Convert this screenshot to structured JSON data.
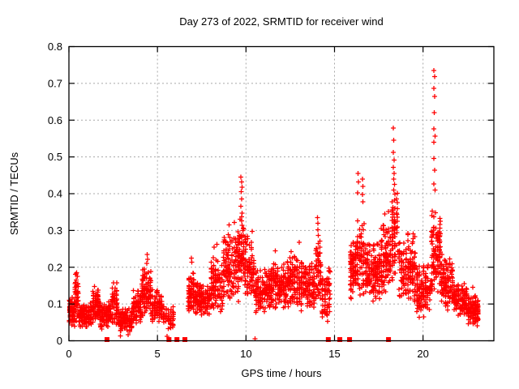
{
  "window": {
    "background": "#ffffff"
  },
  "chart_data": {
    "type": "scatter",
    "title": "Day 273 of 2022, SRMTID for receiver wind",
    "xlabel": "GPS time / hours",
    "ylabel": "SRMTID / TECUs",
    "xlim": [
      0,
      24
    ],
    "ylim": [
      0,
      0.8
    ],
    "xticks": [
      0,
      5,
      10,
      15,
      20
    ],
    "xtick_labels": [
      "0",
      "5",
      "10",
      "15",
      "20"
    ],
    "yticks": [
      0,
      0.1,
      0.2,
      0.3,
      0.4,
      0.5,
      0.6,
      0.7,
      0.8
    ],
    "ytick_labels": [
      "0",
      "0.1",
      "0.2",
      "0.3",
      "0.4",
      "0.5",
      "0.6",
      "0.7",
      "0.8"
    ],
    "legend": "none",
    "grid": {
      "visible": true,
      "style": "dotted",
      "color": "#a8a8a8"
    },
    "axis_color": "#000000",
    "text_color": "#000000",
    "marker": {
      "shape": "plus",
      "size": 6,
      "color": "#ff0000"
    },
    "gap_marker": {
      "shape": "filled-square",
      "size": 6,
      "color": "#ff0000",
      "y": 0
    },
    "gap_squares_x": [
      2.15,
      5.65,
      6.1,
      6.55,
      14.65,
      15.3,
      15.85,
      18.05
    ],
    "data_gaps": [
      [
        5.95,
        6.7
      ],
      [
        14.8,
        15.85
      ]
    ],
    "seed": 273,
    "bands": [
      [
        0.0,
        0.35,
        80,
        0.03,
        0.13
      ],
      [
        0.33,
        0.55,
        45,
        0.05,
        0.19
      ],
      [
        0.55,
        1.3,
        140,
        0.03,
        0.11
      ],
      [
        1.3,
        1.7,
        70,
        0.04,
        0.15
      ],
      [
        1.7,
        2.4,
        120,
        0.03,
        0.11
      ],
      [
        2.4,
        2.75,
        55,
        0.04,
        0.16
      ],
      [
        2.75,
        3.6,
        130,
        0.02,
        0.09
      ],
      [
        3.6,
        4.1,
        80,
        0.04,
        0.14
      ],
      [
        4.1,
        4.65,
        95,
        0.06,
        0.21
      ],
      [
        4.65,
        5.3,
        85,
        0.04,
        0.14
      ],
      [
        5.3,
        5.95,
        55,
        0.02,
        0.11
      ],
      [
        6.7,
        7.1,
        70,
        0.07,
        0.2
      ],
      [
        7.1,
        8.0,
        130,
        0.06,
        0.16
      ],
      [
        8.0,
        8.7,
        110,
        0.07,
        0.24
      ],
      [
        8.7,
        9.6,
        150,
        0.1,
        0.3
      ],
      [
        9.6,
        9.9,
        55,
        0.14,
        0.36
      ],
      [
        9.9,
        10.5,
        90,
        0.1,
        0.29
      ],
      [
        10.5,
        11.5,
        150,
        0.07,
        0.2
      ],
      [
        11.5,
        12.3,
        125,
        0.08,
        0.22
      ],
      [
        12.3,
        13.2,
        135,
        0.08,
        0.24
      ],
      [
        13.2,
        13.9,
        105,
        0.08,
        0.22
      ],
      [
        13.9,
        14.25,
        60,
        0.1,
        0.3
      ],
      [
        14.25,
        14.78,
        70,
        0.04,
        0.2
      ],
      [
        15.85,
        16.25,
        80,
        0.1,
        0.28
      ],
      [
        16.25,
        16.7,
        70,
        0.11,
        0.34
      ],
      [
        16.7,
        17.6,
        140,
        0.1,
        0.28
      ],
      [
        17.6,
        18.2,
        100,
        0.12,
        0.33
      ],
      [
        18.2,
        18.6,
        65,
        0.15,
        0.42
      ],
      [
        18.6,
        19.6,
        150,
        0.1,
        0.3
      ],
      [
        19.6,
        20.45,
        130,
        0.06,
        0.22
      ],
      [
        20.45,
        21.0,
        115,
        0.12,
        0.36
      ],
      [
        21.0,
        21.7,
        110,
        0.08,
        0.24
      ],
      [
        21.7,
        22.5,
        120,
        0.06,
        0.16
      ],
      [
        22.5,
        23.15,
        120,
        0.04,
        0.13
      ]
    ],
    "peaks": [
      [
        0.44,
        0.185
      ],
      [
        0.47,
        0.175
      ],
      [
        0.42,
        0.165
      ],
      [
        1.45,
        0.148
      ],
      [
        2.52,
        0.158
      ],
      [
        4.42,
        0.235
      ],
      [
        4.45,
        0.222
      ],
      [
        4.4,
        0.21
      ],
      [
        6.92,
        0.225
      ],
      [
        6.95,
        0.214
      ],
      [
        8.2,
        0.255
      ],
      [
        8.35,
        0.262
      ],
      [
        9.05,
        0.315
      ],
      [
        9.35,
        0.322
      ],
      [
        9.72,
        0.445
      ],
      [
        9.75,
        0.432
      ],
      [
        9.78,
        0.418
      ],
      [
        9.74,
        0.405
      ],
      [
        9.76,
        0.386
      ],
      [
        9.71,
        0.366
      ],
      [
        9.77,
        0.347
      ],
      [
        10.35,
        0.298
      ],
      [
        10.52,
        0.006
      ],
      [
        11.65,
        0.245
      ],
      [
        12.55,
        0.242
      ],
      [
        13.0,
        0.268
      ],
      [
        14.03,
        0.335
      ],
      [
        14.07,
        0.32
      ],
      [
        14.05,
        0.302
      ],
      [
        14.08,
        0.286
      ],
      [
        16.33,
        0.455
      ],
      [
        16.35,
        0.432
      ],
      [
        16.31,
        0.402
      ],
      [
        16.58,
        0.44
      ],
      [
        16.6,
        0.42
      ],
      [
        16.57,
        0.398
      ],
      [
        16.61,
        0.378
      ],
      [
        17.85,
        0.345
      ],
      [
        18.05,
        0.352
      ],
      [
        18.32,
        0.578
      ],
      [
        18.35,
        0.545
      ],
      [
        18.33,
        0.512
      ],
      [
        18.36,
        0.492
      ],
      [
        18.33,
        0.472
      ],
      [
        18.37,
        0.455
      ],
      [
        18.34,
        0.44
      ],
      [
        18.38,
        0.425
      ],
      [
        18.35,
        0.41
      ],
      [
        20.62,
        0.735
      ],
      [
        20.66,
        0.718
      ],
      [
        20.6,
        0.686
      ],
      [
        20.65,
        0.664
      ],
      [
        20.63,
        0.62
      ],
      [
        20.6,
        0.576
      ],
      [
        20.67,
        0.556
      ],
      [
        20.62,
        0.54
      ],
      [
        20.6,
        0.496
      ],
      [
        20.66,
        0.464
      ],
      [
        20.6,
        0.426
      ],
      [
        20.68,
        0.41
      ],
      [
        22.8,
        0.145
      ],
      [
        2.9,
        0.013
      ],
      [
        3.35,
        0.016
      ],
      [
        5.55,
        0.012
      ]
    ]
  }
}
